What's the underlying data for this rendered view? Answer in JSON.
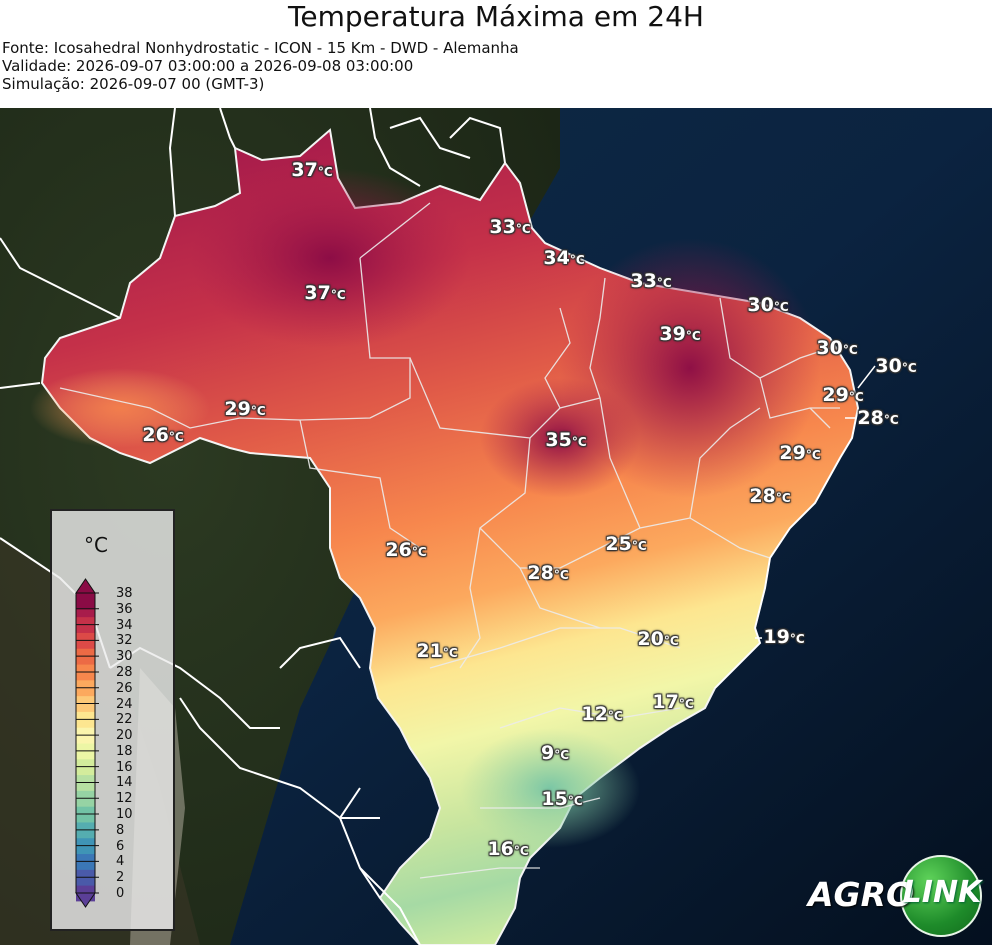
{
  "header": {
    "title": "Temperatura Máxima em 24H",
    "source": "Fonte: Icosahedral Nonhydrostatic - ICON - 15 Km - DWD - Alemanha",
    "validity": "Validade: 2026-09-07 03:00:00 a 2026-09-08 03:00:00",
    "simulation": "Simulação: 2026-09-07 00 (GMT-3)"
  },
  "legend": {
    "unit": "°C",
    "ticks": [
      "0",
      "2",
      "4",
      "6",
      "8",
      "10",
      "12",
      "14",
      "16",
      "18",
      "20",
      "22",
      "24",
      "26",
      "28",
      "30",
      "32",
      "34",
      "36",
      "38"
    ],
    "colors": [
      "#5b3f97",
      "#4a5aa9",
      "#3b77b6",
      "#3f94b6",
      "#55adb0",
      "#72c3a6",
      "#96d3a4",
      "#b6e0a2",
      "#d3ec9c",
      "#ecf6a5",
      "#fbf5ad",
      "#fde690",
      "#fdc978",
      "#fca95e",
      "#f7874d",
      "#ec6a45",
      "#dc4a47",
      "#c53149",
      "#a81c4b",
      "#8a0b45"
    ],
    "range": [
      0,
      38
    ]
  },
  "temperatures": [
    {
      "id": "t01",
      "value": "37",
      "unit": "°C"
    },
    {
      "id": "t02",
      "value": "33",
      "unit": "°C"
    },
    {
      "id": "t03",
      "value": "34",
      "unit": "°C"
    },
    {
      "id": "t04",
      "value": "33",
      "unit": "°C"
    },
    {
      "id": "t05",
      "value": "37",
      "unit": "°C"
    },
    {
      "id": "t06",
      "value": "30",
      "unit": "°C"
    },
    {
      "id": "t07",
      "value": "39",
      "unit": "°C"
    },
    {
      "id": "t08",
      "value": "30",
      "unit": "°C"
    },
    {
      "id": "t09",
      "value": "30",
      "unit": "°C"
    },
    {
      "id": "t10",
      "value": "29",
      "unit": "°C"
    },
    {
      "id": "t11",
      "value": "29",
      "unit": "°C"
    },
    {
      "id": "t12",
      "value": "28",
      "unit": "°C"
    },
    {
      "id": "t13",
      "value": "26",
      "unit": "°C"
    },
    {
      "id": "t14",
      "value": "35",
      "unit": "°C"
    },
    {
      "id": "t15",
      "value": "29",
      "unit": "°C"
    },
    {
      "id": "t16",
      "value": "28",
      "unit": "°C"
    },
    {
      "id": "t17",
      "value": "25",
      "unit": "°C"
    },
    {
      "id": "t18",
      "value": "26",
      "unit": "°C"
    },
    {
      "id": "t19",
      "value": "28",
      "unit": "°C"
    },
    {
      "id": "t20",
      "value": "21",
      "unit": "°C"
    },
    {
      "id": "t21",
      "value": "20",
      "unit": "°C"
    },
    {
      "id": "t22",
      "value": "19",
      "unit": "°C"
    },
    {
      "id": "t23",
      "value": "17",
      "unit": "°C"
    },
    {
      "id": "t24",
      "value": "12",
      "unit": "°C"
    },
    {
      "id": "t25",
      "value": "9",
      "unit": "°C"
    },
    {
      "id": "t26",
      "value": "15",
      "unit": "°C"
    },
    {
      "id": "t27",
      "value": "16",
      "unit": "°C"
    }
  ],
  "logo": {
    "part1": "AGRO",
    "part2": "LINK"
  }
}
